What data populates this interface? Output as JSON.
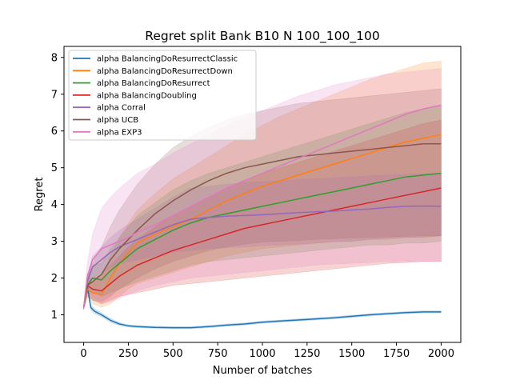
{
  "chart_data": {
    "type": "line",
    "title": "Regret split Bank B10 N 100_100_100",
    "xlabel": "Number of batches",
    "ylabel": "Regret",
    "xlim": [
      -110,
      2110
    ],
    "ylim": [
      0.25,
      8.3
    ],
    "xticks": [
      0,
      250,
      500,
      750,
      1000,
      1250,
      1500,
      1750,
      2000
    ],
    "yticks": [
      1,
      2,
      3,
      4,
      5,
      6,
      7,
      8
    ],
    "grid": false,
    "legend": "top-left",
    "series": [
      {
        "name": "alpha BalancingDoResurrectClassic",
        "color": "#1f77b4",
        "x": [
          0,
          20,
          40,
          60,
          100,
          150,
          200,
          250,
          300,
          400,
          500,
          600,
          700,
          800,
          900,
          1000,
          1100,
          1200,
          1300,
          1400,
          1500,
          1600,
          1700,
          1800,
          1900,
          2000
        ],
        "y": [
          1.2,
          1.8,
          1.2,
          1.1,
          1.0,
          0.85,
          0.75,
          0.7,
          0.68,
          0.66,
          0.65,
          0.65,
          0.68,
          0.72,
          0.75,
          0.8,
          0.83,
          0.86,
          0.89,
          0.92,
          0.96,
          1.0,
          1.03,
          1.06,
          1.08,
          1.08
        ],
        "lower": [
          1.15,
          1.7,
          1.12,
          1.03,
          0.95,
          0.8,
          0.71,
          0.67,
          0.65,
          0.63,
          0.62,
          0.62,
          0.65,
          0.69,
          0.72,
          0.77,
          0.8,
          0.83,
          0.86,
          0.89,
          0.93,
          0.97,
          1.0,
          1.03,
          1.05,
          1.05
        ],
        "upper": [
          1.25,
          1.9,
          1.28,
          1.17,
          1.05,
          0.9,
          0.79,
          0.73,
          0.71,
          0.69,
          0.68,
          0.68,
          0.71,
          0.75,
          0.78,
          0.83,
          0.86,
          0.89,
          0.92,
          0.95,
          0.99,
          1.03,
          1.06,
          1.09,
          1.11,
          1.11
        ]
      },
      {
        "name": "alpha BalancingDoResurrectDown",
        "color": "#ff7f0e",
        "x": [
          0,
          20,
          50,
          100,
          150,
          200,
          250,
          300,
          400,
          500,
          600,
          700,
          800,
          900,
          1000,
          1100,
          1200,
          1300,
          1400,
          1500,
          1600,
          1700,
          1800,
          1900,
          2000
        ],
        "y": [
          1.2,
          1.7,
          1.6,
          1.55,
          2.0,
          2.4,
          2.7,
          2.95,
          3.2,
          3.4,
          3.6,
          3.85,
          4.1,
          4.3,
          4.5,
          4.65,
          4.8,
          4.95,
          5.1,
          5.25,
          5.4,
          5.55,
          5.7,
          5.8,
          5.9
        ],
        "lower": [
          1.15,
          1.5,
          1.3,
          1.2,
          1.3,
          1.5,
          1.7,
          1.85,
          2.0,
          2.15,
          2.3,
          2.45,
          2.6,
          2.7,
          2.8,
          2.85,
          2.9,
          2.95,
          3.0,
          3.0,
          3.05,
          3.05,
          3.1,
          3.1,
          3.15
        ],
        "upper": [
          1.25,
          1.9,
          1.9,
          2.0,
          2.6,
          3.1,
          3.5,
          3.85,
          4.3,
          4.7,
          5.0,
          5.3,
          5.6,
          5.9,
          6.15,
          6.4,
          6.6,
          6.8,
          7.0,
          7.2,
          7.4,
          7.55,
          7.7,
          7.85,
          7.9
        ]
      },
      {
        "name": "alpha BalancingDoResurrect",
        "color": "#2ca02c",
        "x": [
          0,
          20,
          50,
          100,
          150,
          200,
          250,
          300,
          400,
          500,
          600,
          700,
          800,
          900,
          1000,
          1100,
          1200,
          1300,
          1400,
          1500,
          1600,
          1700,
          1800,
          1900,
          2000
        ],
        "y": [
          1.2,
          1.8,
          2.0,
          1.95,
          2.2,
          2.4,
          2.6,
          2.8,
          3.05,
          3.3,
          3.5,
          3.65,
          3.75,
          3.85,
          3.95,
          4.05,
          4.15,
          4.25,
          4.35,
          4.45,
          4.55,
          4.65,
          4.75,
          4.8,
          4.85
        ],
        "lower": [
          1.15,
          1.6,
          1.65,
          1.5,
          1.6,
          1.7,
          1.8,
          1.9,
          2.05,
          2.2,
          2.35,
          2.45,
          2.5,
          2.55,
          2.6,
          2.65,
          2.7,
          2.75,
          2.8,
          2.85,
          2.9,
          2.9,
          2.95,
          2.95,
          3.0
        ],
        "upper": [
          1.25,
          2.0,
          2.35,
          2.4,
          2.8,
          3.1,
          3.4,
          3.7,
          4.05,
          4.4,
          4.65,
          4.85,
          5.0,
          5.15,
          5.3,
          5.45,
          5.6,
          5.75,
          5.9,
          6.05,
          6.2,
          6.35,
          6.5,
          6.6,
          6.7
        ]
      },
      {
        "name": "alpha BalancingDoubling",
        "color": "#d62728",
        "x": [
          0,
          20,
          50,
          100,
          150,
          200,
          250,
          300,
          400,
          500,
          600,
          700,
          800,
          900,
          1000,
          1100,
          1200,
          1300,
          1400,
          1500,
          1600,
          1700,
          1800,
          1900,
          2000
        ],
        "y": [
          1.2,
          1.8,
          1.7,
          1.65,
          1.85,
          2.05,
          2.2,
          2.35,
          2.55,
          2.75,
          2.9,
          3.05,
          3.2,
          3.35,
          3.45,
          3.55,
          3.65,
          3.75,
          3.85,
          3.95,
          4.05,
          4.15,
          4.25,
          4.35,
          4.45
        ],
        "lower": [
          1.15,
          1.6,
          1.4,
          1.3,
          1.4,
          1.5,
          1.55,
          1.6,
          1.7,
          1.8,
          1.85,
          1.9,
          1.95,
          2.0,
          2.05,
          2.1,
          2.15,
          2.2,
          2.25,
          2.3,
          2.35,
          2.4,
          2.42,
          2.45,
          2.45
        ],
        "upper": [
          1.25,
          2.0,
          2.0,
          2.1,
          2.35,
          2.6,
          2.85,
          3.05,
          3.4,
          3.7,
          3.95,
          4.2,
          4.45,
          4.65,
          4.85,
          5.0,
          5.15,
          5.3,
          5.45,
          5.6,
          5.75,
          5.9,
          6.05,
          6.2,
          6.3
        ]
      },
      {
        "name": "alpha Corral",
        "color": "#9467bd",
        "x": [
          0,
          20,
          50,
          100,
          150,
          200,
          250,
          300,
          400,
          500,
          600,
          700,
          800,
          900,
          1000,
          1100,
          1200,
          1300,
          1400,
          1500,
          1600,
          1700,
          1800,
          1900,
          2000
        ],
        "y": [
          1.2,
          1.9,
          2.3,
          2.5,
          2.7,
          2.85,
          2.95,
          3.05,
          3.25,
          3.45,
          3.6,
          3.65,
          3.68,
          3.7,
          3.72,
          3.75,
          3.78,
          3.8,
          3.82,
          3.85,
          3.88,
          3.92,
          3.95,
          3.96,
          3.95
        ],
        "lower": [
          1.15,
          1.7,
          2.0,
          2.15,
          2.3,
          2.4,
          2.45,
          2.5,
          2.6,
          2.7,
          2.75,
          2.8,
          2.82,
          2.85,
          2.88,
          2.9,
          2.92,
          2.95,
          2.98,
          3.0,
          3.05,
          3.08,
          3.1,
          3.12,
          3.15
        ],
        "upper": [
          1.25,
          2.1,
          2.6,
          2.85,
          3.1,
          3.3,
          3.45,
          3.6,
          3.9,
          4.2,
          4.45,
          4.5,
          4.55,
          4.6,
          4.62,
          4.65,
          4.68,
          4.7,
          4.72,
          4.75,
          4.78,
          4.8,
          4.82,
          4.84,
          4.85
        ]
      },
      {
        "name": "alpha UCB",
        "color": "#8c564b",
        "x": [
          0,
          20,
          50,
          100,
          150,
          200,
          250,
          300,
          400,
          500,
          600,
          700,
          800,
          900,
          1000,
          1100,
          1200,
          1300,
          1400,
          1500,
          1600,
          1700,
          1800,
          1900,
          2000
        ],
        "y": [
          1.2,
          1.8,
          1.9,
          2.1,
          2.5,
          2.8,
          3.05,
          3.3,
          3.75,
          4.1,
          4.4,
          4.65,
          4.85,
          5.0,
          5.1,
          5.2,
          5.3,
          5.35,
          5.4,
          5.45,
          5.5,
          5.55,
          5.6,
          5.65,
          5.65
        ],
        "lower": [
          1.15,
          1.5,
          1.4,
          1.35,
          1.5,
          1.7,
          1.85,
          2.0,
          2.25,
          2.45,
          2.6,
          2.75,
          2.85,
          2.92,
          2.98,
          3.0,
          3.02,
          3.05,
          3.07,
          3.09,
          3.1,
          3.12,
          3.13,
          3.15,
          3.15
        ],
        "upper": [
          1.25,
          2.1,
          2.4,
          2.85,
          3.4,
          3.85,
          4.2,
          4.55,
          5.1,
          5.55,
          5.85,
          6.1,
          6.3,
          6.45,
          6.55,
          6.65,
          6.75,
          6.8,
          6.85,
          6.9,
          6.95,
          7.0,
          7.05,
          7.1,
          7.15
        ]
      },
      {
        "name": "alpha EXP3",
        "color": "#e377c2",
        "x": [
          0,
          20,
          50,
          100,
          150,
          200,
          250,
          300,
          400,
          500,
          600,
          700,
          800,
          900,
          1000,
          1100,
          1200,
          1300,
          1400,
          1500,
          1600,
          1700,
          1800,
          1900,
          2000
        ],
        "y": [
          1.2,
          2.0,
          2.5,
          2.8,
          2.9,
          3.0,
          3.1,
          3.25,
          3.45,
          3.7,
          3.95,
          4.2,
          4.45,
          4.65,
          4.85,
          5.05,
          5.25,
          5.45,
          5.65,
          5.85,
          6.05,
          6.25,
          6.45,
          6.6,
          6.7
        ],
        "lower": [
          1.15,
          1.6,
          1.5,
          1.3,
          1.35,
          1.45,
          1.55,
          1.65,
          1.8,
          1.9,
          2.0,
          2.05,
          2.1,
          2.15,
          2.2,
          2.25,
          2.3,
          2.35,
          2.38,
          2.4,
          2.42,
          2.44,
          2.45,
          2.45,
          2.45
        ],
        "upper": [
          1.25,
          2.4,
          3.2,
          3.9,
          4.2,
          4.45,
          4.65,
          4.85,
          5.1,
          5.4,
          5.65,
          5.9,
          6.15,
          6.35,
          6.55,
          6.75,
          6.95,
          7.1,
          7.25,
          7.35,
          7.45,
          7.55,
          7.6,
          7.65,
          7.7
        ]
      }
    ]
  }
}
